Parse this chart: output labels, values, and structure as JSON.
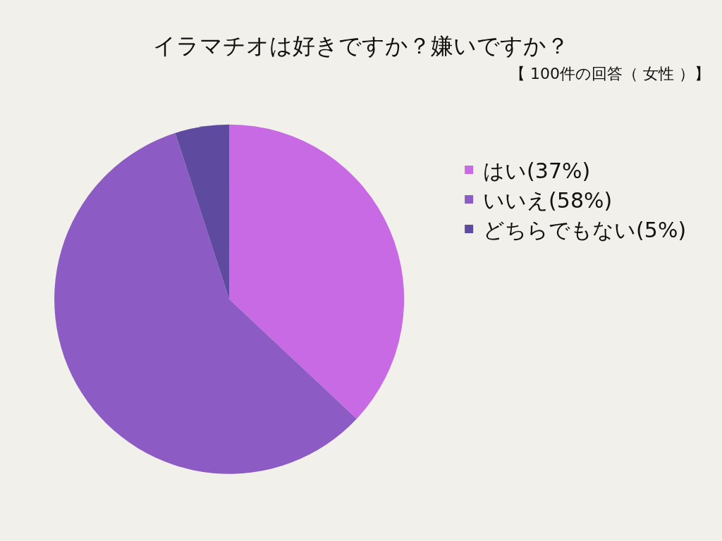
{
  "chart_data": {
    "type": "pie",
    "title": "イラマチオは好きですか？嫌いですか？",
    "subtitle": "【 100件の回答（ 女性 ）】",
    "categories": [
      "はい(37%)",
      "いいえ(58%)",
      "どちらでもない(5%)"
    ],
    "values": [
      37,
      58,
      5
    ],
    "colors": [
      "#c76ae3",
      "#8d5bc4",
      "#5e4a9e"
    ],
    "legend": "right"
  }
}
